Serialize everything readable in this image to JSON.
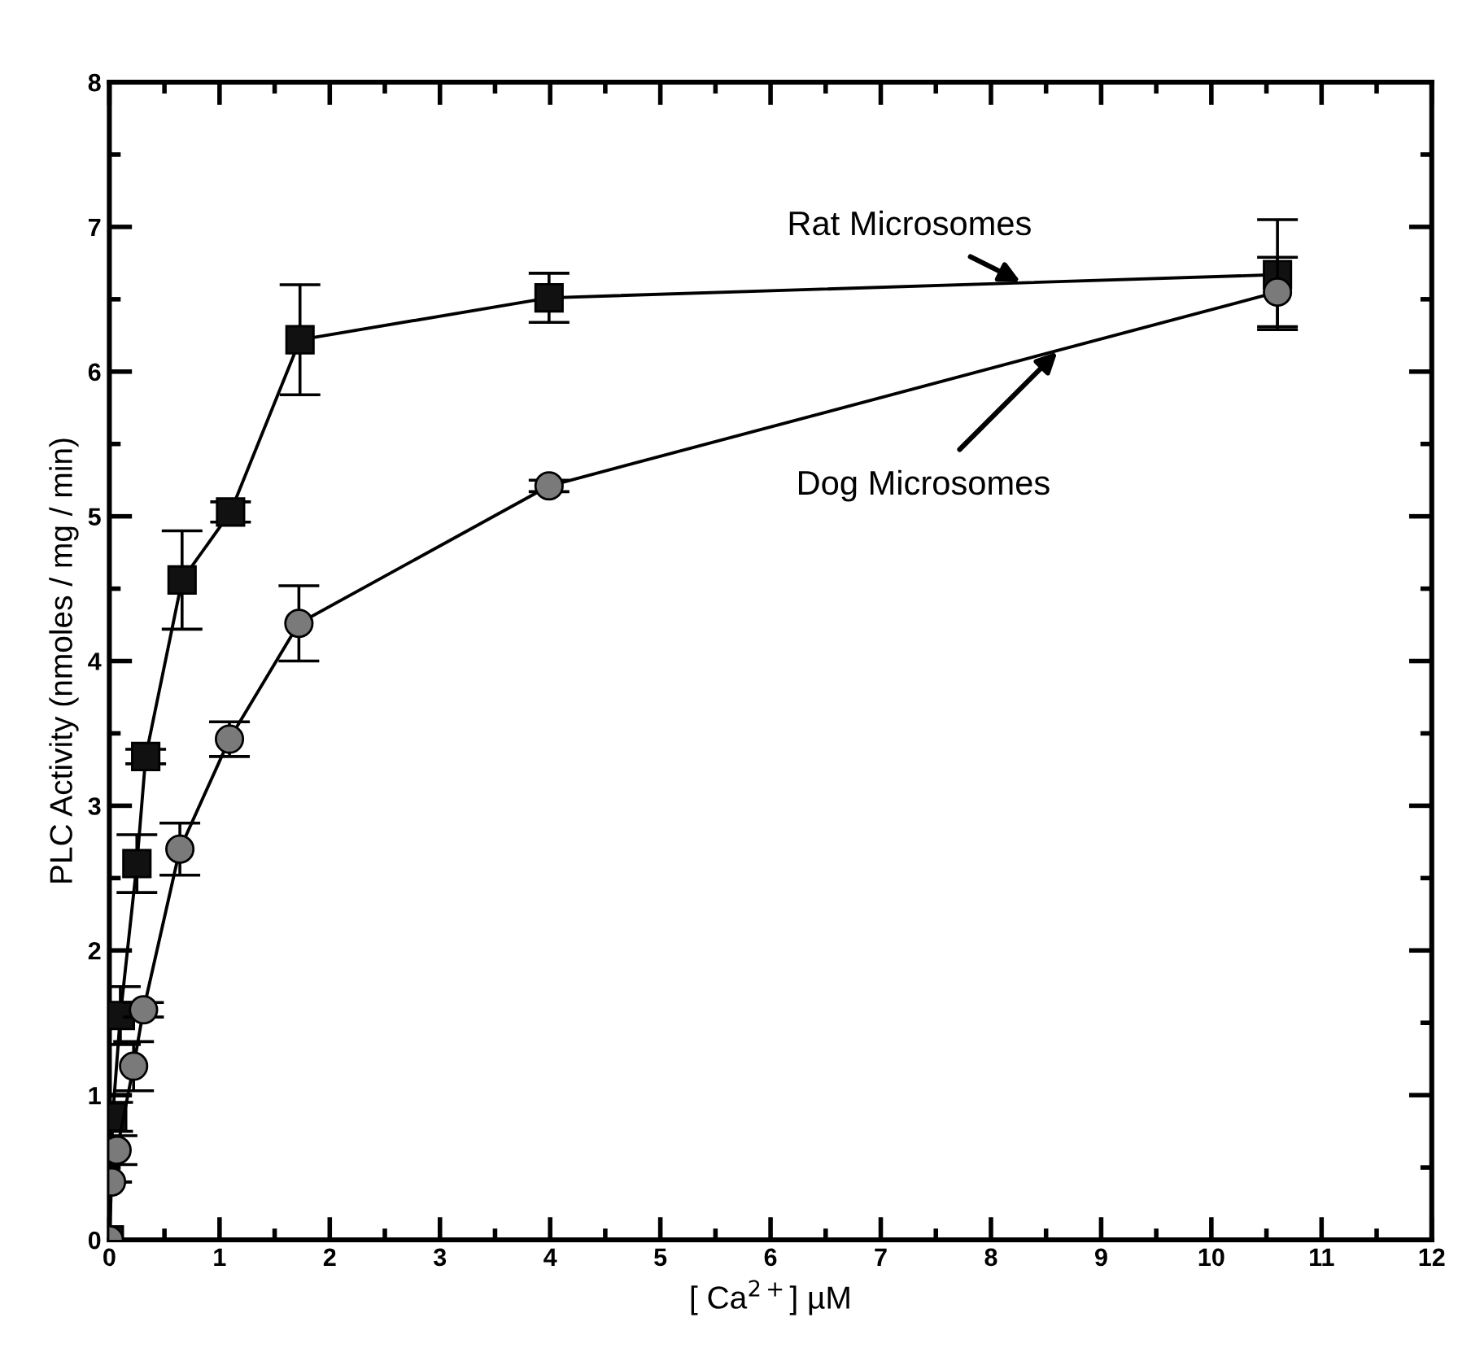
{
  "chart_data": {
    "type": "line",
    "xlabel": "[ Ca$^{2+}$] µM",
    "ylabel": "PLC Activity (nmoles / mg / min)",
    "xlim": [
      0,
      12
    ],
    "ylim": [
      0,
      8
    ],
    "xticks": [
      0,
      1,
      2,
      3,
      4,
      5,
      6,
      7,
      8,
      9,
      10,
      11,
      12
    ],
    "yticks": [
      0,
      1,
      2,
      3,
      4,
      5,
      6,
      7,
      8
    ],
    "grid": false,
    "legend": false,
    "line_style": "solid",
    "series": [
      {
        "name": "Rat Microsomes",
        "color": "#111111",
        "marker": "square",
        "x": [
          0,
          0.03,
          0.1,
          0.25,
          0.33,
          0.66,
          1.1,
          1.73,
          3.99,
          10.6
        ],
        "values": [
          0,
          0.85,
          1.55,
          2.6,
          3.34,
          4.56,
          5.03,
          6.22,
          6.51,
          6.67
        ],
        "errors": [
          null,
          0.1,
          0.2,
          0.2,
          0.05,
          0.34,
          0.07,
          0.38,
          0.17,
          0.38
        ]
      },
      {
        "name": "Dog Microsomes",
        "color": "#7a7a7a",
        "marker": "circle",
        "x": [
          0,
          0.02,
          0.07,
          0.22,
          0.31,
          0.64,
          1.09,
          1.72,
          3.99,
          10.6
        ],
        "values": [
          0,
          0.4,
          0.62,
          1.2,
          1.59,
          2.7,
          3.46,
          4.26,
          5.21,
          6.55
        ],
        "errors": [
          null,
          null,
          0.1,
          0.17,
          0.05,
          0.18,
          0.12,
          0.26,
          0.04,
          0.24
        ]
      }
    ]
  }
}
